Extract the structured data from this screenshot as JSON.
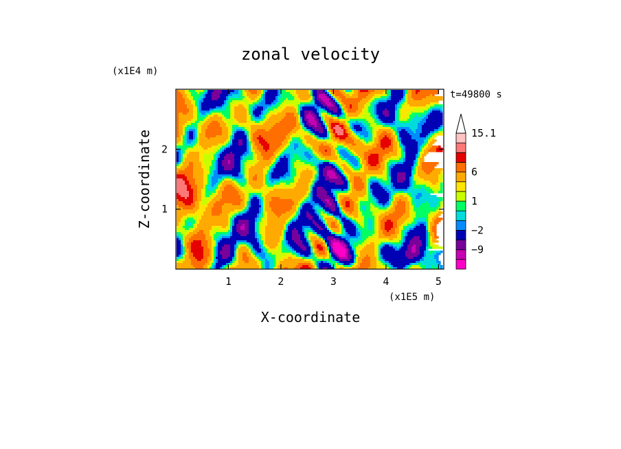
{
  "chart_data": {
    "type": "heatmap",
    "title": "zonal velocity",
    "xlabel": "X-coordinate",
    "ylabel": "Z-coordinate",
    "x_unit": "(x1E5 m)",
    "y_unit": "(x1E4 m)",
    "time_label": "t=49800 s",
    "xlim": [
      0,
      5.1
    ],
    "ylim": [
      0,
      3.0
    ],
    "x_ticks": [
      1,
      2,
      3,
      4,
      5
    ],
    "x_tick_labels": [
      "1",
      "2",
      "3",
      "4",
      "5"
    ],
    "y_ticks": [
      1,
      2
    ],
    "y_tick_labels": [
      "1",
      "2"
    ],
    "colorbar": {
      "levels": [
        -15,
        -12,
        -9,
        -6,
        -2,
        -1,
        0,
        1,
        2,
        3,
        6,
        9,
        12,
        15.1
      ],
      "labels": [
        {
          "value": 15.1,
          "text": "15.1"
        },
        {
          "value": 6,
          "text": "6"
        },
        {
          "value": 1,
          "text": "1"
        },
        {
          "value": -2,
          "text": "−2"
        },
        {
          "value": -9,
          "text": "−9"
        }
      ],
      "colors": [
        "#ff00c8",
        "#c800b4",
        "#78009b",
        "#0000b4",
        "#008cff",
        "#00dcdc",
        "#00ff64",
        "#c8ff00",
        "#ffe600",
        "#ffaa00",
        "#ff6e00",
        "#e60000",
        "#ff7878",
        "#ffc3c3"
      ],
      "extend": "top"
    }
  }
}
